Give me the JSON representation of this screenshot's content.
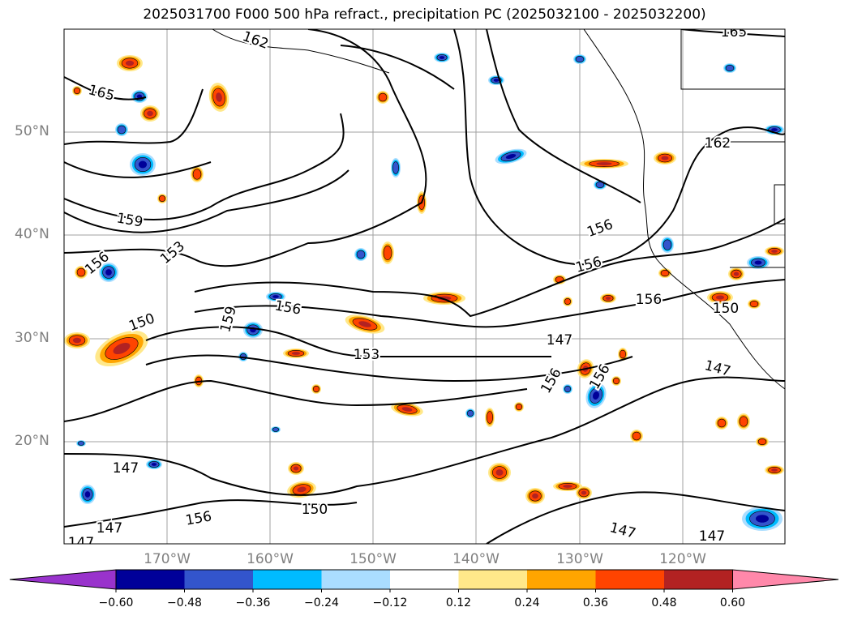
{
  "title": "2025031700 F000 500 hPa refract., precipitation PC (2025032100 - 2025032200)",
  "lat_labels": [
    "50°N",
    "40°N",
    "30°N",
    "20°N"
  ],
  "lon_labels": [
    "170°W",
    "160°W",
    "150°W",
    "140°W",
    "130°W",
    "120°W"
  ],
  "contour_labels": [
    "162",
    "165",
    "165",
    "159",
    "153",
    "156",
    "156",
    "156",
    "150",
    "156",
    "159",
    "156",
    "153",
    "162",
    "156",
    "150",
    "147",
    "147",
    "147",
    "150",
    "156",
    "147",
    "147",
    "147",
    "156",
    "147"
  ],
  "colorbar": {
    "ticks": [
      "−0.60",
      "−0.48",
      "−0.36",
      "−0.24",
      "−0.12",
      "0.12",
      "0.24",
      "0.36",
      "0.48",
      "0.60"
    ],
    "colors": [
      "#9933cc",
      "#000099",
      "#3355cc",
      "#00bbff",
      "#aaddff",
      "#ffffff",
      "#ffe88a",
      "#ffa500",
      "#ff4400",
      "#b22222",
      "#ff88aa"
    ]
  },
  "palette": {
    "contour": "#000000",
    "grid": "#a0a0a0",
    "pos_low": "#ffe88a",
    "pos_mid": "#ffa500",
    "pos_high": "#ff4400",
    "pos_top": "#b22222",
    "neg_low": "#aaddff",
    "neg_mid": "#00bbff",
    "neg_high": "#3355cc",
    "neg_top": "#000099"
  }
}
